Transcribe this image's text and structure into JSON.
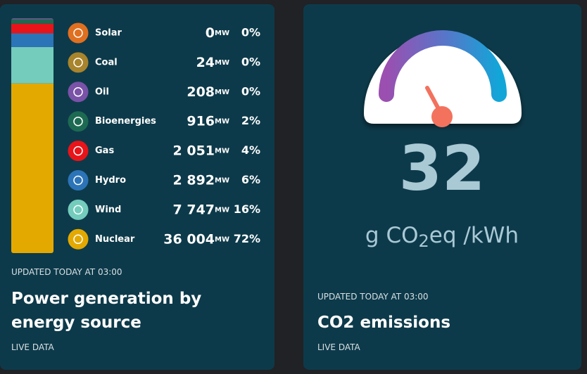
{
  "generation": {
    "unit": "MW",
    "sources": [
      {
        "name": "Solar",
        "color": "#e07020",
        "mw": {
          "value": 0,
          "label": "0"
        },
        "share": "0%"
      },
      {
        "name": "Coal",
        "color": "#a8842c",
        "mw": {
          "value": 24,
          "label": "24"
        },
        "share": "0%"
      },
      {
        "name": "Oil",
        "color": "#7a52a8",
        "mw": {
          "value": 208,
          "label": "208"
        },
        "share": "0%"
      },
      {
        "name": "Bioenergies",
        "color": "#1d6a52",
        "mw": {
          "value": 916,
          "label": "916"
        },
        "share": "2%"
      },
      {
        "name": "Gas",
        "color": "#e8141a",
        "mw": {
          "value": 2051,
          "label": "2 051"
        },
        "share": "4%"
      },
      {
        "name": "Hydro",
        "color": "#2c74b8",
        "mw": {
          "value": 2892,
          "label": "2 892"
        },
        "share": "6%"
      },
      {
        "name": "Wind",
        "color": "#74ccbc",
        "mw": {
          "value": 7747,
          "label": "7 747"
        },
        "share": "16%"
      },
      {
        "name": "Nuclear",
        "color": "#e3a900",
        "mw": {
          "value": 36004,
          "label": "36 004"
        },
        "share": "72%"
      }
    ],
    "updated": "UPDATED TODAY AT 03:00",
    "title": "Power generation by energy source",
    "footer": "LIVE DATA"
  },
  "emissions": {
    "value": 32,
    "unit_prefix": "g CO",
    "unit_sub": "2",
    "unit_suffix": "eq /kWh",
    "updated": "UPDATED TODAY AT 03:00",
    "title": "CO2 emissions",
    "footer": "LIVE DATA"
  }
}
